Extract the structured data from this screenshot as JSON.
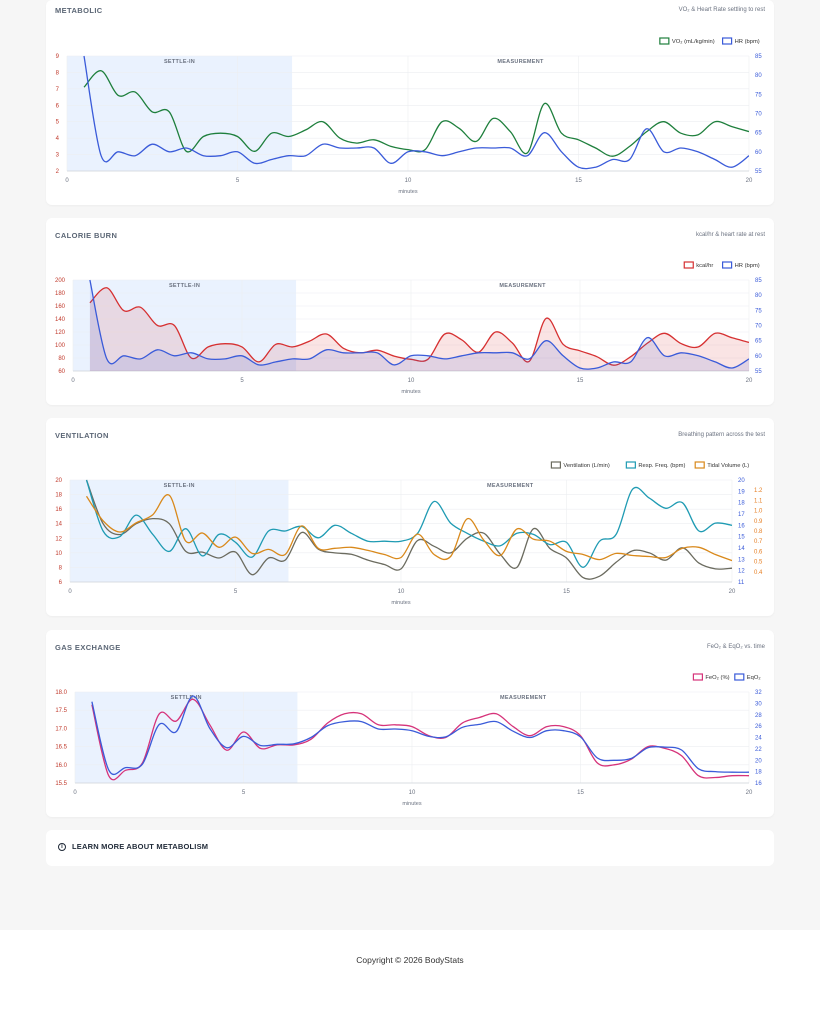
{
  "cards": [
    {
      "title": "METABOLIC",
      "subtitle": "VO₂ & Heart Rate settling to rest"
    },
    {
      "title": "CALORIE BURN",
      "subtitle": "kcal/hr & heart rate at rest"
    },
    {
      "title": "VENTILATION",
      "subtitle": "Breathing pattern across the test"
    },
    {
      "title": "GAS EXCHANGE",
      "subtitle": "FeO₂ & EqO₂ vs. time"
    }
  ],
  "learn_more": {
    "label": "LEARN MORE ABOUT METABOLISM"
  },
  "footer": {
    "copyright": "Copyright © 2026 BodyStats"
  },
  "chart_data": [
    {
      "type": "line",
      "xlabel": "minutes",
      "xlim": [
        0,
        20
      ],
      "xticks": [
        "0",
        "5",
        "10",
        "15",
        "20"
      ],
      "phases": [
        {
          "label": "SETTLE-IN",
          "start": 0,
          "end": 6.6
        },
        {
          "label": "MEASUREMENT",
          "start": 6.6,
          "end": 20
        }
      ],
      "axes": {
        "left": {
          "min": 2,
          "max": 9,
          "ticks": [
            "2",
            "3",
            "4",
            "5",
            "6",
            "7",
            "8",
            "9"
          ],
          "color": "#c0392b"
        },
        "right": {
          "min": 55,
          "max": 85,
          "ticks": [
            "55",
            "60",
            "65",
            "70",
            "75",
            "80",
            "85"
          ],
          "color": "#3a5bd9"
        }
      },
      "series": [
        {
          "name": "VO₂ (mL/kg/min)",
          "axis": "left",
          "color": "#1e7f3c",
          "fill": false,
          "x": [
            0.5,
            1,
            1.5,
            2,
            2.5,
            3,
            3.5,
            4,
            4.5,
            5,
            5.5,
            6,
            6.5,
            7,
            7.5,
            8,
            8.5,
            9,
            9.5,
            10,
            10.5,
            11,
            11.5,
            12,
            12.5,
            13,
            13.5,
            14,
            14.5,
            15,
            15.5,
            16,
            16.5,
            17,
            17.5,
            18,
            18.5,
            19,
            19.5,
            20
          ],
          "values": [
            7.1,
            8.1,
            6.6,
            6.8,
            5.6,
            5.6,
            3.2,
            4.1,
            4.3,
            4.1,
            3.2,
            4.3,
            4.1,
            4.5,
            5,
            4,
            3.7,
            3.9,
            3.5,
            3.3,
            3.3,
            5,
            4.6,
            3.8,
            5.2,
            4.4,
            3.1,
            6.1,
            4.3,
            3.9,
            3.4,
            2.9,
            3.5,
            4.4,
            5,
            4.3,
            4.2,
            5,
            4.7,
            4.4
          ]
        },
        {
          "name": "HR (bpm)",
          "axis": "right",
          "color": "#3a5bd9",
          "fill": false,
          "x": [
            0.5,
            1,
            1.5,
            2,
            2.5,
            3,
            3.5,
            4,
            4.5,
            5,
            5.5,
            6,
            6.5,
            7,
            7.5,
            8,
            8.5,
            9,
            9.5,
            10,
            10.5,
            11,
            11.5,
            12,
            12.5,
            13,
            13.5,
            14,
            14.5,
            15,
            15.5,
            16,
            16.5,
            17,
            17.5,
            18,
            18.5,
            19,
            19.5,
            20
          ],
          "values": [
            85,
            59,
            60,
            59,
            62,
            60,
            61,
            59,
            59,
            60,
            57,
            58,
            59,
            59,
            62,
            61,
            61,
            61,
            57,
            60,
            60,
            59,
            60,
            61,
            61,
            61,
            59,
            65,
            60,
            56,
            56,
            58,
            58,
            66,
            60,
            61,
            60,
            58,
            56,
            59
          ]
        }
      ]
    },
    {
      "type": "area",
      "xlabel": "minutes",
      "xlim": [
        0,
        20
      ],
      "xticks": [
        "0",
        "5",
        "10",
        "15",
        "20"
      ],
      "phases": [
        {
          "label": "SETTLE-IN",
          "start": 0,
          "end": 6.6
        },
        {
          "label": "MEASUREMENT",
          "start": 6.6,
          "end": 20
        }
      ],
      "axes": {
        "left": {
          "min": 60,
          "max": 200,
          "ticks": [
            "60",
            "80",
            "100",
            "120",
            "140",
            "160",
            "180",
            "200"
          ],
          "color": "#c0392b"
        },
        "right": {
          "min": 55,
          "max": 85,
          "ticks": [
            "55",
            "60",
            "65",
            "70",
            "75",
            "80",
            "85"
          ],
          "color": "#3a5bd9"
        }
      },
      "series": [
        {
          "name": "kcal/hr",
          "axis": "left",
          "color": "#d63031",
          "fill": true,
          "x": [
            0.5,
            1,
            1.5,
            2,
            2.5,
            3,
            3.5,
            4,
            4.5,
            5,
            5.5,
            6,
            6.5,
            7,
            7.5,
            8,
            8.5,
            9,
            9.5,
            10,
            10.5,
            11,
            11.5,
            12,
            12.5,
            13,
            13.5,
            14,
            14.5,
            15,
            15.5,
            16,
            16.5,
            17,
            17.5,
            18,
            18.5,
            19,
            19.5,
            20
          ],
          "values": [
            165,
            188,
            153,
            158,
            130,
            130,
            80,
            97,
            102,
            97,
            74,
            101,
            97,
            106,
            117,
            95,
            88,
            92,
            83,
            78,
            78,
            117,
            108,
            89,
            120,
            103,
            75,
            141,
            101,
            91,
            82,
            69,
            82,
            103,
            118,
            102,
            97,
            118,
            111,
            104
          ]
        },
        {
          "name": "HR (bpm)",
          "axis": "right",
          "color": "#3a5bd9",
          "fill": true,
          "x": [
            0.5,
            1,
            1.5,
            2,
            2.5,
            3,
            3.5,
            4,
            4.5,
            5,
            5.5,
            6,
            6.5,
            7,
            7.5,
            8,
            8.5,
            9,
            9.5,
            10,
            10.5,
            11,
            11.5,
            12,
            12.5,
            13,
            13.5,
            14,
            14.5,
            15,
            15.5,
            16,
            16.5,
            17,
            17.5,
            18,
            18.5,
            19,
            19.5,
            20
          ],
          "values": [
            85,
            59,
            60,
            59,
            62,
            60,
            61,
            59,
            59,
            60,
            57,
            58,
            59,
            59,
            62,
            61,
            61,
            61,
            57,
            60,
            60,
            59,
            60,
            61,
            61,
            61,
            59,
            65,
            60,
            56,
            56,
            58,
            58,
            66,
            60,
            61,
            60,
            58,
            56,
            59
          ]
        }
      ]
    },
    {
      "type": "line",
      "xlabel": "minutes",
      "xlim": [
        0,
        20
      ],
      "xticks": [
        "0",
        "5",
        "10",
        "15",
        "20"
      ],
      "phases": [
        {
          "label": "SETTLE-IN",
          "start": 0,
          "end": 6.6
        },
        {
          "label": "MEASUREMENT",
          "start": 6.6,
          "end": 20
        }
      ],
      "axes": {
        "left": {
          "min": 6,
          "max": 20,
          "ticks": [
            "6",
            "8",
            "10",
            "12",
            "14",
            "16",
            "18",
            "20"
          ],
          "color": "#c0392b"
        },
        "right": {
          "min": 11,
          "max": 20,
          "ticks": [
            "11",
            "12",
            "13",
            "14",
            "15",
            "16",
            "17",
            "18",
            "19",
            "20"
          ],
          "color": "#3a5bd9"
        },
        "right2": {
          "min": 0.3,
          "max": 1.3,
          "ticks": [
            "0.4",
            "0.5",
            "0.6",
            "0.7",
            "0.8",
            "0.9",
            "1.0",
            "1.1",
            "1.2"
          ],
          "color": "#e67e22"
        }
      },
      "series": [
        {
          "name": "Ventilation (L/min)",
          "axis": "left",
          "color": "#6b6b5f",
          "fill": false,
          "x": [
            0.5,
            1,
            1.5,
            2,
            2.5,
            3,
            3.5,
            4,
            4.5,
            5,
            5.5,
            6,
            6.5,
            7,
            7.5,
            8,
            8.5,
            9,
            9.5,
            10,
            10.5,
            11,
            11.5,
            12,
            12.5,
            13,
            13.5,
            14,
            14.5,
            15,
            15.5,
            16,
            16.5,
            17,
            17.5,
            18,
            18.5,
            19,
            19.5,
            20
          ],
          "values": [
            20,
            14,
            12.5,
            14,
            14.7,
            14,
            10.2,
            10.1,
            9.3,
            10.1,
            7,
            9.3,
            9,
            12.8,
            10.5,
            10,
            9.8,
            9,
            8.4,
            7.8,
            11.7,
            10.9,
            10,
            12,
            12.7,
            9.8,
            8,
            13.3,
            10.6,
            9.3,
            6.6,
            6.8,
            8.7,
            10.3,
            10,
            9,
            10.7,
            8.6,
            7.8,
            7.9
          ]
        },
        {
          "name": "Resp. Freq. (bpm)",
          "axis": "right",
          "color": "#1f9bb3",
          "fill": false,
          "x": [
            0.5,
            1,
            1.5,
            2,
            2.5,
            3,
            3.5,
            4,
            4.5,
            5,
            5.5,
            6,
            6.5,
            7,
            7.5,
            8,
            8.5,
            9,
            9.5,
            10,
            10.5,
            11,
            11.5,
            12,
            12.5,
            13,
            13.5,
            14,
            14.5,
            15,
            15.5,
            16,
            16.5,
            17,
            17.5,
            18,
            18.5,
            19,
            19.5,
            20
          ],
          "values": [
            20,
            15.5,
            15,
            16.9,
            15.2,
            13.7,
            15.7,
            13.3,
            15.2,
            14.5,
            13.2,
            15.5,
            15.5,
            15.9,
            14.9,
            16,
            15.3,
            14.6,
            14.6,
            14.6,
            15.3,
            18.1,
            16.2,
            15.3,
            14.6,
            14.2,
            15.3,
            15.2,
            14.3,
            14.5,
            12.3,
            14.6,
            15.2,
            19.2,
            18.4,
            17.5,
            18,
            15.5,
            16.2,
            16
          ]
        },
        {
          "name": "Tidal Volume (L)",
          "axis": "right2",
          "color": "#d9891b",
          "fill": false,
          "x": [
            0.5,
            1,
            1.5,
            2,
            2.5,
            3,
            3.5,
            4,
            4.5,
            5,
            5.5,
            6,
            6.5,
            7,
            7.5,
            8,
            8.5,
            9,
            9.5,
            10,
            10.5,
            11,
            11.5,
            12,
            12.5,
            13,
            13.5,
            14,
            14.5,
            15,
            15.5,
            16,
            16.5,
            17,
            17.5,
            18,
            18.5,
            19,
            19.5,
            20
          ],
          "values": [
            1.14,
            0.9,
            0.79,
            0.88,
            0.96,
            1.15,
            0.7,
            0.78,
            0.64,
            0.74,
            0.58,
            0.62,
            0.57,
            0.85,
            0.63,
            0.63,
            0.64,
            0.61,
            0.57,
            0.54,
            0.77,
            0.57,
            0.55,
            0.92,
            0.71,
            0.56,
            0.82,
            0.72,
            0.7,
            0.6,
            0.57,
            0.52,
            0.58,
            0.56,
            0.55,
            0.54,
            0.63,
            0.64,
            0.57,
            0.51
          ]
        }
      ]
    },
    {
      "type": "line",
      "xlabel": "minutes",
      "xlim": [
        0,
        20
      ],
      "xticks": [
        "0",
        "5",
        "10",
        "15",
        "20"
      ],
      "phases": [
        {
          "label": "SETTLE-IN",
          "start": 0,
          "end": 6.6
        },
        {
          "label": "MEASUREMENT",
          "start": 6.6,
          "end": 20
        }
      ],
      "axes": {
        "left": {
          "min": 15.5,
          "max": 18,
          "ticks": [
            "15.5",
            "16.0",
            "16.5",
            "17.0",
            "17.5",
            "18.0"
          ],
          "color": "#c0392b"
        },
        "right": {
          "min": 16,
          "max": 32,
          "ticks": [
            "16",
            "18",
            "20",
            "22",
            "24",
            "26",
            "28",
            "30",
            "32"
          ],
          "color": "#3a5bd9"
        }
      },
      "series": [
        {
          "name": "FeO₂ (%)",
          "axis": "left",
          "color": "#d6337a",
          "fill": false,
          "x": [
            0.5,
            1,
            1.5,
            2,
            2.5,
            3,
            3.5,
            4,
            4.5,
            5,
            5.5,
            6,
            6.5,
            7,
            7.5,
            8,
            8.5,
            9,
            9.5,
            10,
            10.5,
            11,
            11.5,
            12,
            12.5,
            13,
            13.5,
            14,
            14.5,
            15,
            15.5,
            16,
            16.5,
            17,
            17.5,
            18,
            18.5,
            19,
            19.5,
            20
          ],
          "values": [
            17.65,
            15.7,
            15.85,
            16.05,
            17.4,
            17.2,
            17.8,
            17.1,
            16.4,
            16.9,
            16.45,
            16.55,
            16.55,
            16.7,
            17.15,
            17.4,
            17.4,
            17.1,
            17.1,
            17.05,
            16.8,
            16.75,
            17.15,
            17.3,
            17.4,
            17.05,
            16.8,
            17.05,
            17.05,
            16.8,
            16.05,
            16,
            16.15,
            16.5,
            16.45,
            16.25,
            15.7,
            15.65,
            15.7,
            15.7
          ]
        },
        {
          "name": "EqO₂",
          "axis": "right",
          "color": "#3a5bd9",
          "fill": false,
          "x": [
            0.5,
            1,
            1.5,
            2,
            2.5,
            3,
            3.5,
            4,
            4.5,
            5,
            5.5,
            6,
            6.5,
            7,
            7.5,
            8,
            8.5,
            9,
            9.5,
            10,
            10.5,
            11,
            11.5,
            12,
            12.5,
            13,
            13.5,
            14,
            14.5,
            15,
            15.5,
            16,
            16.5,
            17,
            17.5,
            18,
            18.5,
            19,
            19.5,
            20
          ],
          "values": [
            30.3,
            18.3,
            18.7,
            19.3,
            26.3,
            25,
            31.3,
            25.6,
            22.2,
            24.2,
            22.6,
            22.8,
            22.9,
            24,
            26.1,
            26.8,
            26.8,
            25.5,
            25.5,
            25.2,
            24.2,
            24.1,
            25.8,
            26.3,
            26.8,
            25.1,
            24,
            25.2,
            25.2,
            24.1,
            20.4,
            20,
            20.3,
            22.2,
            22.3,
            21.8,
            18.5,
            18,
            17.9,
            17.9
          ]
        }
      ]
    }
  ]
}
